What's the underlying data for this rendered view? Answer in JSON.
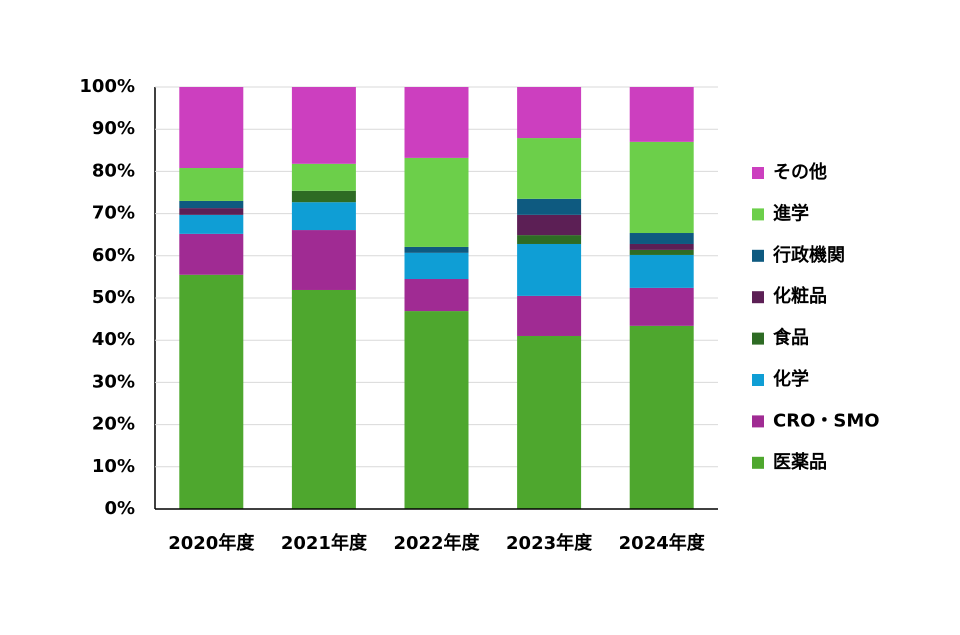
{
  "chart_data": {
    "type": "stacked_bar",
    "categories": [
      "2020年度",
      "2021年度",
      "2022年度",
      "2023年度",
      "2024年度"
    ],
    "series": [
      {
        "name": "医薬品",
        "color": "#4ea72e",
        "values": [
          55.5,
          51.9,
          46.9,
          41.0,
          43.4
        ]
      },
      {
        "name": "CRO・SMO",
        "color": "#a02b93",
        "values": [
          9.7,
          14.2,
          7.6,
          9.5,
          9.0
        ]
      },
      {
        "name": "化学",
        "color": "#0f9ed5",
        "values": [
          4.5,
          6.6,
          6.2,
          12.3,
          7.8
        ]
      },
      {
        "name": "食品",
        "color": "#2e6b24",
        "values": [
          0,
          2.7,
          0,
          2.1,
          1.2
        ]
      },
      {
        "name": "化粧品",
        "color": "#5c1f55",
        "values": [
          1.6,
          0,
          0,
          4.8,
          1.4
        ]
      },
      {
        "name": "行政機関",
        "color": "#0e5a80",
        "values": [
          1.7,
          0,
          1.4,
          3.8,
          2.6
        ]
      },
      {
        "name": "進学",
        "color": "#6ccf4a",
        "values": [
          7.8,
          6.4,
          21.1,
          14.4,
          21.6
        ]
      },
      {
        "name": "その他",
        "color": "#cc3fbf",
        "values": [
          19.2,
          18.2,
          16.8,
          12.1,
          13.0
        ]
      }
    ],
    "ylim": [
      0,
      100
    ],
    "yticks": [
      {
        "value": 0,
        "label": "0%"
      },
      {
        "value": 10,
        "label": "10%"
      },
      {
        "value": 20,
        "label": "20%"
      },
      {
        "value": 30,
        "label": "30%"
      },
      {
        "value": 40,
        "label": "40%"
      },
      {
        "value": 50,
        "label": "50%"
      },
      {
        "value": 60,
        "label": "60%"
      },
      {
        "value": 70,
        "label": "70%"
      },
      {
        "value": 80,
        "label": "80%"
      },
      {
        "value": 90,
        "label": "90%"
      },
      {
        "value": 100,
        "label": "100%"
      }
    ],
    "grid": true,
    "legend": "right"
  }
}
